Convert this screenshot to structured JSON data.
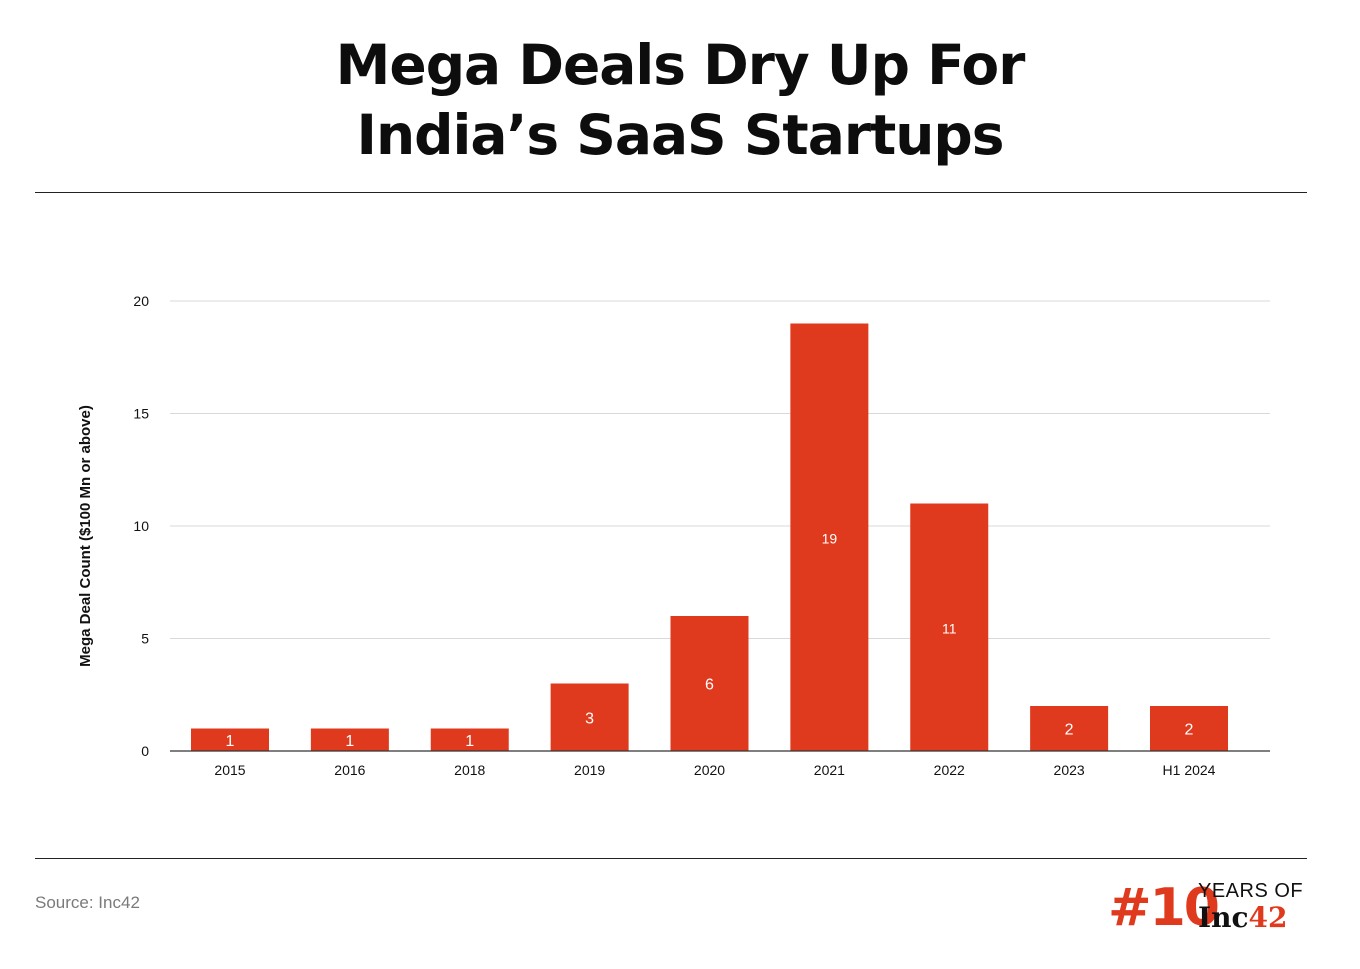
{
  "title_lines": [
    "Mega Deals Dry Up For",
    "India’s SaaS Startups"
  ],
  "source": "Source: Inc42",
  "logo": {
    "hash": "#10",
    "years_of": "YEARS OF",
    "brand_text": "Inc",
    "brand_num": "42"
  },
  "colors": {
    "bar": "#e03a1e",
    "grid": "#d9d9d9",
    "axis": "#333333",
    "text": "#111111"
  },
  "chart_data": {
    "type": "bar",
    "title": "Mega Deals Dry Up For India’s SaaS Startups",
    "xlabel": "",
    "ylabel": "Mega Deal Count ($100 Mn or above)",
    "categories": [
      "2015",
      "2016",
      "2018",
      "2019",
      "2020",
      "2021",
      "2022",
      "2023",
      "H1 2024"
    ],
    "values": [
      1,
      1,
      1,
      3,
      6,
      19,
      11,
      2,
      2
    ],
    "data_labels": [
      "1",
      "1",
      "1",
      "3",
      "6",
      "19",
      "11",
      "2",
      "2"
    ],
    "ylim": [
      0,
      20
    ],
    "yticks": [
      0,
      5,
      10,
      15,
      20
    ],
    "ytick_labels": [
      "0",
      "5",
      "10",
      "15",
      "20"
    ],
    "grid": true,
    "legend": "none"
  }
}
